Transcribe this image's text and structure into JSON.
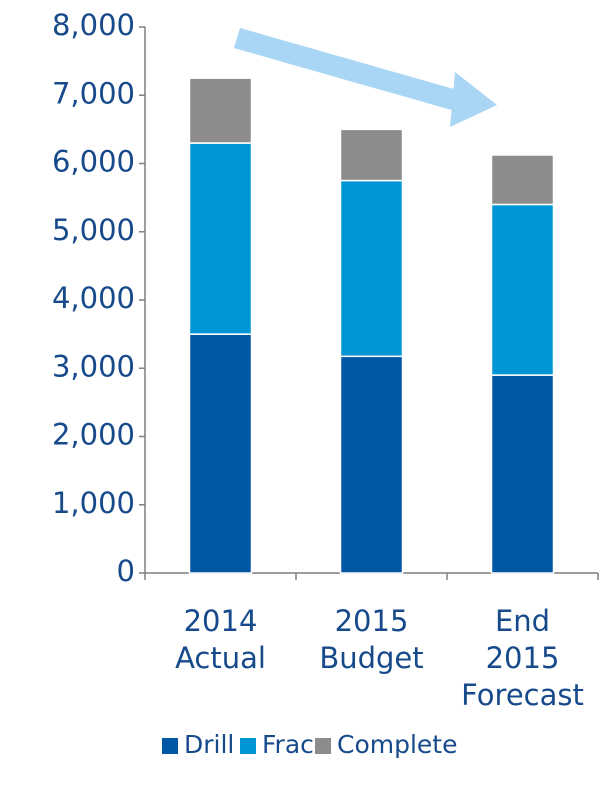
{
  "chart_data": {
    "type": "stacked_bar",
    "categories": [
      [
        "2014",
        "Actual"
      ],
      [
        "2015",
        "Budget"
      ],
      [
        "End",
        "2015",
        "Forecast"
      ]
    ],
    "series": [
      {
        "name": "Drill",
        "color": "#0057a4",
        "values": [
          3500,
          3175,
          2900
        ]
      },
      {
        "name": "Frac",
        "color": "#0096d6",
        "values": [
          2800,
          2575,
          2500
        ]
      },
      {
        "name": "Complete",
        "color": "#8c8c8c",
        "values": [
          950,
          750,
          725
        ]
      }
    ],
    "ylim": [
      0,
      8000
    ],
    "yticks": [
      0,
      {
        "value": 1000,
        "label": "1,000"
      },
      {
        "value": 2000,
        "label": "2,000"
      },
      {
        "value": 3000,
        "label": "3,000"
      },
      {
        "value": 4000,
        "label": "4,000"
      },
      {
        "value": 5000,
        "label": "5,000"
      },
      {
        "value": 6000,
        "label": "6,000"
      },
      {
        "value": 7000,
        "label": "7,000"
      },
      {
        "value": 8000,
        "label": "8,000"
      }
    ],
    "legend": "bottom"
  }
}
